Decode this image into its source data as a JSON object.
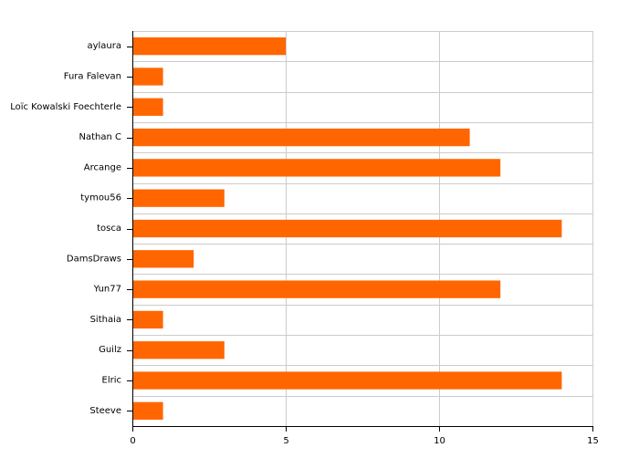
{
  "chart_data": {
    "type": "bar",
    "orientation": "horizontal",
    "categories": [
      "aylaura",
      "Fura Falevan",
      "Loïc Kowalski Foechterle",
      "Nathan C",
      "Arcange",
      "tymou56",
      "tosca",
      "DamsDraws",
      "Yun77",
      "Sithaia",
      "Guilz",
      "Elric",
      "Steeve"
    ],
    "values": [
      5,
      1,
      1,
      11,
      12,
      3,
      14,
      2,
      12,
      1,
      3,
      14,
      1
    ],
    "xlim": [
      0,
      15
    ],
    "xticks": [
      "0",
      "5",
      "10",
      "15"
    ],
    "grid": true,
    "legend": "none",
    "colors": {
      "bar": "#ff6600",
      "grid": "#cccccc",
      "axis": "#000000"
    }
  }
}
